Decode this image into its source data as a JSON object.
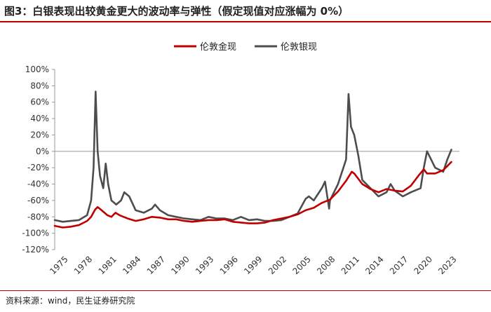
{
  "header": {
    "title": "图3：白银表现出较黄金更大的波动率与弹性（假定现值对应涨幅为 0%）"
  },
  "footer": {
    "source": "资料来源：wind，民生证券研究院"
  },
  "chart_data": {
    "type": "line",
    "title": "",
    "xlabel": "",
    "ylabel": "",
    "xlim": [
      1975,
      2025
    ],
    "ylim": [
      -120,
      100
    ],
    "y_ticks": [
      100,
      80,
      60,
      40,
      20,
      0,
      -20,
      -40,
      -60,
      -80,
      -100,
      -120
    ],
    "y_tick_labels": [
      "100%",
      "80%",
      "60%",
      "40%",
      "20%",
      "0%",
      "-20%",
      "-40%",
      "-60%",
      "-80%",
      "-100%",
      "-120%"
    ],
    "x_ticks": [
      1975,
      1978,
      1981,
      1984,
      1987,
      1990,
      1993,
      1996,
      1999,
      2002,
      2005,
      2008,
      2011,
      2014,
      2017,
      2020,
      2023
    ],
    "x_tick_labels": [
      "1975",
      "1978",
      "1981",
      "1984",
      "1987",
      "1990",
      "1993",
      "1996",
      "1999",
      "2002",
      "2005",
      "2008",
      "2011",
      "2014",
      "2017",
      "2020",
      "2023"
    ],
    "grid": false,
    "legend_position": "top-center",
    "series": [
      {
        "name": "伦敦金现",
        "color": "#c00000",
        "x": [
          1975,
          1976,
          1977,
          1978,
          1979,
          1979.5,
          1980.0,
          1980.3,
          1980.8,
          1981.5,
          1982,
          1982.5,
          1983,
          1984,
          1985,
          1986,
          1987,
          1988,
          1989,
          1990,
          1991,
          1992,
          1993,
          1994,
          1995,
          1996,
          1997,
          1998,
          1999,
          2000,
          2001,
          2002,
          2003,
          2004,
          2005,
          2006,
          2007,
          2008,
          2009,
          2010,
          2011,
          2011.7,
          2012,
          2013,
          2014,
          2015,
          2016,
          2017,
          2018,
          2019,
          2020,
          2020.6,
          2021,
          2022,
          2023,
          2024
        ],
        "y": [
          -91,
          -93,
          -92,
          -90,
          -85,
          -80,
          -71,
          -68,
          -72,
          -78,
          -80,
          -75,
          -78,
          -82,
          -85,
          -83,
          -80,
          -81,
          -83,
          -83,
          -85,
          -86,
          -85,
          -84,
          -84,
          -83,
          -86,
          -87,
          -88,
          -88,
          -87,
          -84,
          -82,
          -80,
          -77,
          -72,
          -69,
          -63,
          -59,
          -49,
          -36,
          -25,
          -27,
          -40,
          -46,
          -50,
          -46,
          -48,
          -49,
          -42,
          -29,
          -22,
          -27,
          -27,
          -23,
          -13
        ]
      },
      {
        "name": "伦敦银现",
        "color": "#4d4d4d",
        "x": [
          1975,
          1976,
          1977,
          1978,
          1979,
          1979.5,
          1979.8,
          1980.05,
          1980.3,
          1980.6,
          1981.0,
          1981.3,
          1981.6,
          1982,
          1982.6,
          1983.2,
          1983.6,
          1984.2,
          1985,
          1986,
          1987,
          1987.4,
          1988,
          1989,
          1990,
          1991,
          1992,
          1993,
          1994,
          1995,
          1996,
          1997,
          1998,
          1999,
          2000,
          2001,
          2002,
          2003,
          2004,
          2005,
          2006,
          2006.4,
          2007,
          2008,
          2008.4,
          2008.9,
          2009,
          2010,
          2011,
          2011.3,
          2011.6,
          2012,
          2012.5,
          2013,
          2014,
          2015,
          2016,
          2016.5,
          2017,
          2018,
          2019,
          2020.2,
          2020.6,
          2021,
          2022,
          2023,
          2023.5,
          2024
        ],
        "y": [
          -84,
          -86,
          -85,
          -84,
          -78,
          -60,
          -20,
          73,
          0,
          -30,
          -45,
          -15,
          -40,
          -60,
          -65,
          -60,
          -50,
          -55,
          -72,
          -75,
          -70,
          -65,
          -72,
          -78,
          -80,
          -82,
          -83,
          -84,
          -80,
          -82,
          -82,
          -84,
          -80,
          -84,
          -83,
          -85,
          -85,
          -84,
          -80,
          -76,
          -58,
          -55,
          -60,
          -45,
          -37,
          -70,
          -60,
          -40,
          -10,
          70,
          30,
          20,
          -5,
          -35,
          -45,
          -55,
          -50,
          -40,
          -48,
          -55,
          -50,
          -45,
          -20,
          0,
          -20,
          -25,
          -10,
          2
        ]
      }
    ]
  }
}
